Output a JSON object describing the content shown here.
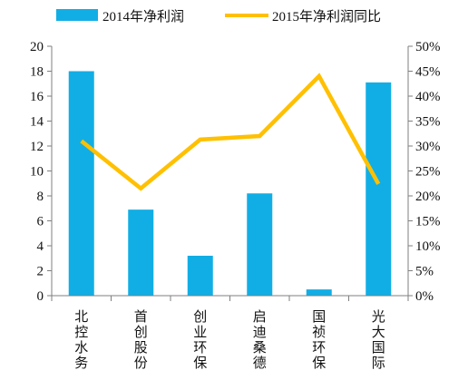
{
  "chart_data": {
    "type": "bar",
    "categories": [
      "北控水务",
      "首创股份",
      "创业环保",
      "启迪桑德",
      "国祯环保",
      "光大国际"
    ],
    "series": [
      {
        "name": "2014年净利润",
        "type": "bar",
        "axis": "left",
        "values": [
          18.0,
          6.9,
          3.2,
          8.2,
          0.5,
          17.1
        ]
      },
      {
        "name": "2015年净利润同比",
        "type": "line",
        "axis": "right",
        "values": [
          0.31,
          0.215,
          0.313,
          0.32,
          0.44,
          0.224
        ]
      }
    ],
    "y_left": {
      "min": 0,
      "max": 20,
      "ticks": [
        "0",
        "2",
        "4",
        "6",
        "8",
        "10",
        "12",
        "14",
        "16",
        "18",
        "20"
      ]
    },
    "y_right": {
      "min": 0,
      "max": 0.5,
      "ticks": [
        "0%",
        "5%",
        "10%",
        "15%",
        "20%",
        "25%",
        "30%",
        "35%",
        "40%",
        "45%",
        "50%"
      ]
    },
    "grid": false,
    "legend_position": "top",
    "colors": {
      "bar": "#11AEE5",
      "line": "#FFC000",
      "axis": "#7F7F7F",
      "text": "#111111"
    }
  }
}
